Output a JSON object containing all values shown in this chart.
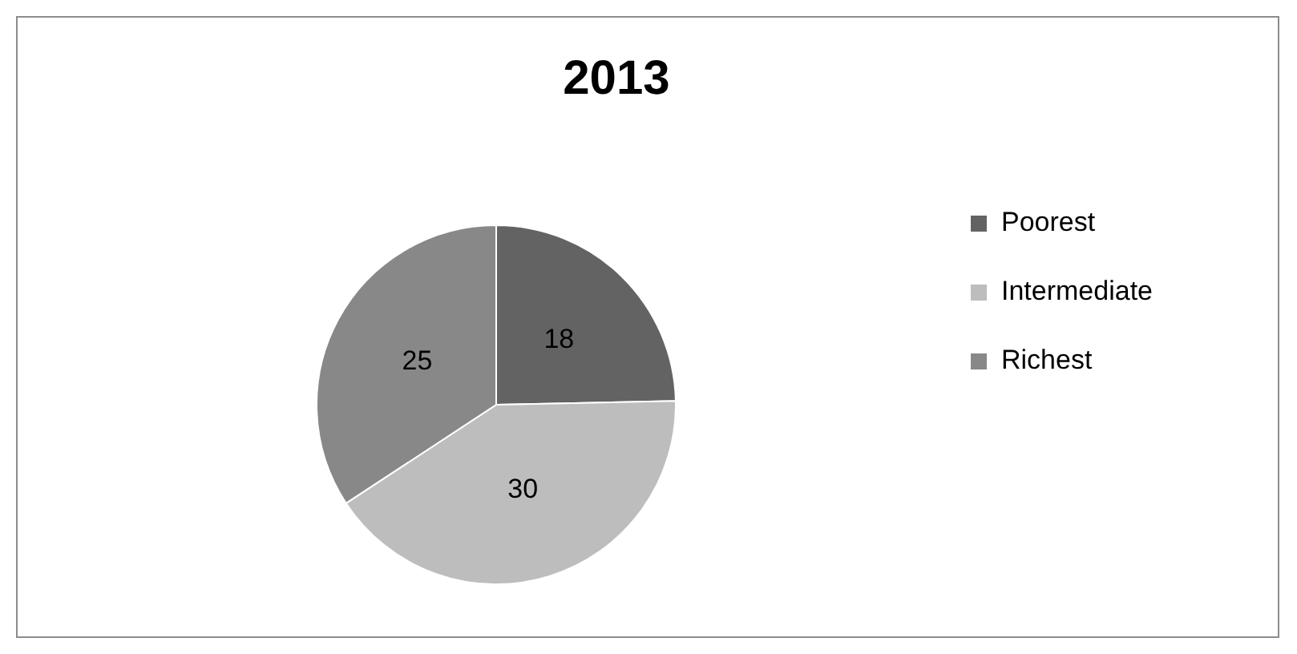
{
  "chart_data": {
    "type": "pie",
    "title": "2013",
    "categories": [
      "Poorest",
      "Intermediate",
      "Richest"
    ],
    "values": [
      18,
      30,
      25
    ],
    "colors": [
      "#636363",
      "#bdbdbd",
      "#888888"
    ],
    "data_labels": true,
    "legend": "right"
  }
}
